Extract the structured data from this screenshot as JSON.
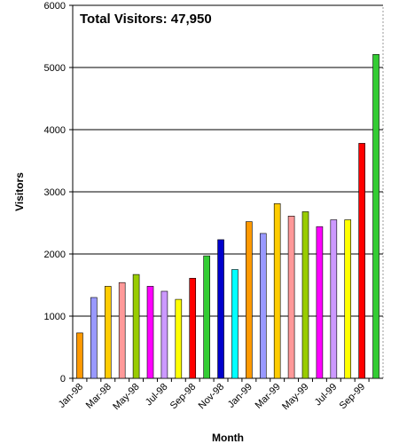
{
  "chart_data": {
    "type": "bar",
    "title": "Total Visitors: 47,950",
    "x_label": "Month",
    "y_label": "Visitors",
    "categories": [
      "Jan-98",
      null,
      "Mar-98",
      null,
      "May-98",
      null,
      "Jul-98",
      null,
      "Sep-98",
      null,
      "Nov-98",
      null,
      "Jan-99",
      null,
      "Mar-99",
      null,
      "May-99",
      null,
      "Jul-99",
      null,
      "Sep-99",
      null
    ],
    "values": [
      730,
      1300,
      1480,
      1540,
      1670,
      1480,
      1400,
      1270,
      1610,
      1970,
      2230,
      1750,
      2520,
      2330,
      2810,
      2610,
      2680,
      2440,
      2550,
      2550,
      3780,
      5210
    ],
    "colors": [
      "#ff9900",
      "#9999ff",
      "#ffcc00",
      "#ff9999",
      "#99cc00",
      "#ff00ff",
      "#cc99ff",
      "#ffff00",
      "#ff0000",
      "#33cc33",
      "#0000cc",
      "#00ffff",
      "#ff9900",
      "#9999ff",
      "#ffcc00",
      "#ff9999",
      "#99cc00",
      "#ff00ff",
      "#cc99ff",
      "#ffff00",
      "#ff0000",
      "#33cc33"
    ],
    "ylim": [
      0,
      6000
    ],
    "yticks": [
      0,
      1000,
      2000,
      3000,
      4000,
      5000,
      6000
    ],
    "grid": true
  }
}
